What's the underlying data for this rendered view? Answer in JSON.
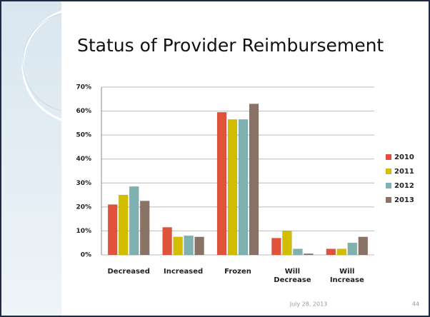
{
  "chart_data": {
    "type": "bar",
    "title": "Status of Provider Reimbursement",
    "categories": [
      "Decreased",
      "Increased",
      "Frozen",
      "Will Decrease",
      "Will Increase"
    ],
    "series": [
      {
        "name": "2010",
        "color": "#e0533a",
        "values": [
          21,
          11.5,
          59.5,
          7,
          2.5
        ]
      },
      {
        "name": "2011",
        "color": "#d2bd00",
        "values": [
          25,
          7.5,
          56.5,
          10,
          2.5
        ]
      },
      {
        "name": "2012",
        "color": "#7fb1b1",
        "values": [
          28.5,
          8,
          56.5,
          2.5,
          5
        ]
      },
      {
        "name": "2013",
        "color": "#8a7266",
        "values": [
          22.5,
          7.5,
          63,
          0.5,
          7.5
        ]
      }
    ],
    "ylim": [
      0,
      70
    ],
    "yticks": [
      {
        "value": 0,
        "label": "0%"
      },
      {
        "value": 10,
        "label": "10%"
      },
      {
        "value": 20,
        "label": "20%"
      },
      {
        "value": 30,
        "label": "30%"
      },
      {
        "value": 40,
        "label": "40%"
      },
      {
        "value": 50,
        "label": "50%"
      },
      {
        "value": 60,
        "label": "60%"
      },
      {
        "value": 70,
        "label": "70%"
      }
    ],
    "grid": true,
    "legend": "right"
  },
  "footer": {
    "date": "July 28, 2013",
    "page": "44"
  }
}
